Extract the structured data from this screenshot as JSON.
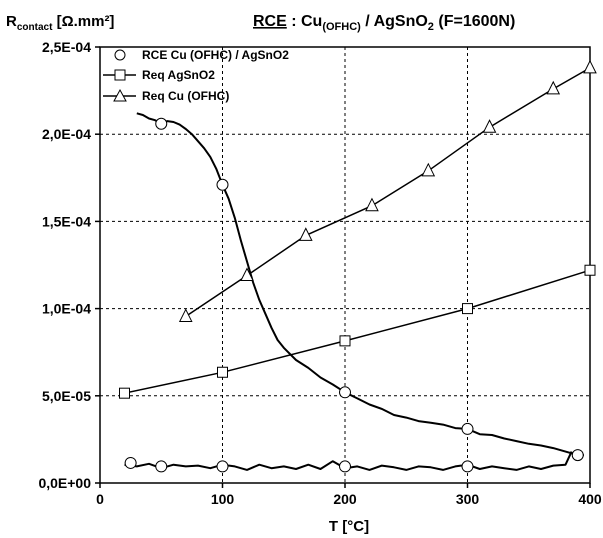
{
  "chart_data": {
    "type": "line",
    "title": {
      "underlined": "RCE",
      "part1": " : Cu",
      "sub": "(OFHC)",
      "part2": " / AgSnO",
      "sub2": "2",
      "part3": " (F=1600N)"
    },
    "ylabel": {
      "main": "R",
      "sub": "contact",
      "unit": " [Ω.mm²]"
    },
    "xlabel": "T [°C]",
    "xlim": [
      0,
      400
    ],
    "ylim": [
      0,
      0.00025
    ],
    "xticks": [
      "0",
      "100",
      "200",
      "300",
      "400"
    ],
    "yticks": [
      "0,0E+00",
      "5,0E-05",
      "1,0E-04",
      "1,5E-04",
      "2,0E-04",
      "2,5E-04"
    ],
    "grid": true,
    "legend_position": "top-left",
    "series": [
      {
        "name": "RCE Cu (OFHC) / AgSnO2",
        "marker": "circle",
        "marker_x": [
          25,
          50,
          100,
          200,
          300,
          390,
          300,
          200,
          100,
          50
        ],
        "marker_y": [
          1.15e-05,
          9.5e-06,
          9.5e-06,
          9.5e-06,
          9.5e-06,
          1.6e-05,
          3.1e-05,
          5.2e-05,
          0.000171,
          0.000206
        ],
        "heating_x": [
          20,
          30,
          40,
          50,
          60,
          70,
          80,
          90,
          100,
          110,
          120,
          130,
          140,
          150,
          160,
          170,
          180,
          190,
          200,
          210,
          220,
          230,
          240,
          250,
          260,
          270,
          280,
          290,
          300,
          310,
          320,
          330,
          340,
          350,
          360,
          370,
          380,
          385
        ],
        "heating_y": [
          1.05e-05,
          9.5e-06,
          1.1e-05,
          8.5e-06,
          1.05e-05,
          9.5e-06,
          1e-05,
          8.5e-06,
          1.05e-05,
          9.5e-06,
          7.5e-06,
          1.05e-05,
          8.5e-06,
          9.5e-06,
          8e-06,
          1.05e-05,
          8e-06,
          1.25e-05,
          8.5e-06,
          9.5e-06,
          7.5e-06,
          1e-05,
          9e-06,
          7.5e-06,
          9.5e-06,
          9e-06,
          7.5e-06,
          9.5e-06,
          1.05e-05,
          8e-06,
          9.5e-06,
          8.5e-06,
          7.5e-06,
          9.5e-06,
          8e-06,
          1e-05,
          1.05e-05,
          1.8e-05
        ],
        "cooling_x": [
          395,
          390,
          380,
          370,
          360,
          350,
          340,
          330,
          320,
          310,
          300,
          290,
          280,
          270,
          260,
          250,
          240,
          230,
          220,
          210,
          200,
          190,
          180,
          170,
          160,
          150,
          145,
          140,
          135,
          130,
          125,
          120,
          115,
          110,
          105,
          100,
          95,
          90,
          85,
          80,
          75,
          70,
          65,
          60,
          55,
          50,
          45,
          40,
          35,
          30
        ],
        "cooling_y": [
          1.6e-05,
          1.6e-05,
          1.8e-05,
          2e-05,
          2.15e-05,
          2.25e-05,
          2.4e-05,
          2.55e-05,
          2.75e-05,
          2.8e-05,
          3.1e-05,
          3.15e-05,
          3.35e-05,
          3.45e-05,
          3.55e-05,
          3.75e-05,
          3.9e-05,
          4.25e-05,
          4.5e-05,
          4.85e-05,
          5.2e-05,
          5.65e-05,
          6.05e-05,
          6.6e-05,
          7.05e-05,
          7.75e-05,
          8.2e-05,
          8.9e-05,
          9.7e-05,
          0.000105,
          0.000115,
          0.000127,
          0.000139,
          0.000152,
          0.000163,
          0.000171,
          0.00018,
          0.000187,
          0.000192,
          0.000196,
          0.0002,
          0.000203,
          0.0002055,
          0.000207,
          0.0002075,
          0.000206,
          0.000208,
          0.000209,
          0.000211,
          0.000212
        ]
      },
      {
        "name": "Req AgSnO2",
        "marker": "square",
        "x": [
          20,
          100,
          200,
          300,
          400
        ],
        "y": [
          5.15e-05,
          6.35e-05,
          8.15e-05,
          0.0001,
          0.000122
        ]
      },
      {
        "name": "Req Cu (OFHC)",
        "marker": "triangle",
        "x": [
          70,
          120,
          168,
          222,
          268,
          318,
          370,
          400
        ],
        "y": [
          9.55e-05,
          0.000119,
          0.000142,
          0.000159,
          0.000179,
          0.000204,
          0.000226,
          0.000238
        ]
      }
    ]
  }
}
